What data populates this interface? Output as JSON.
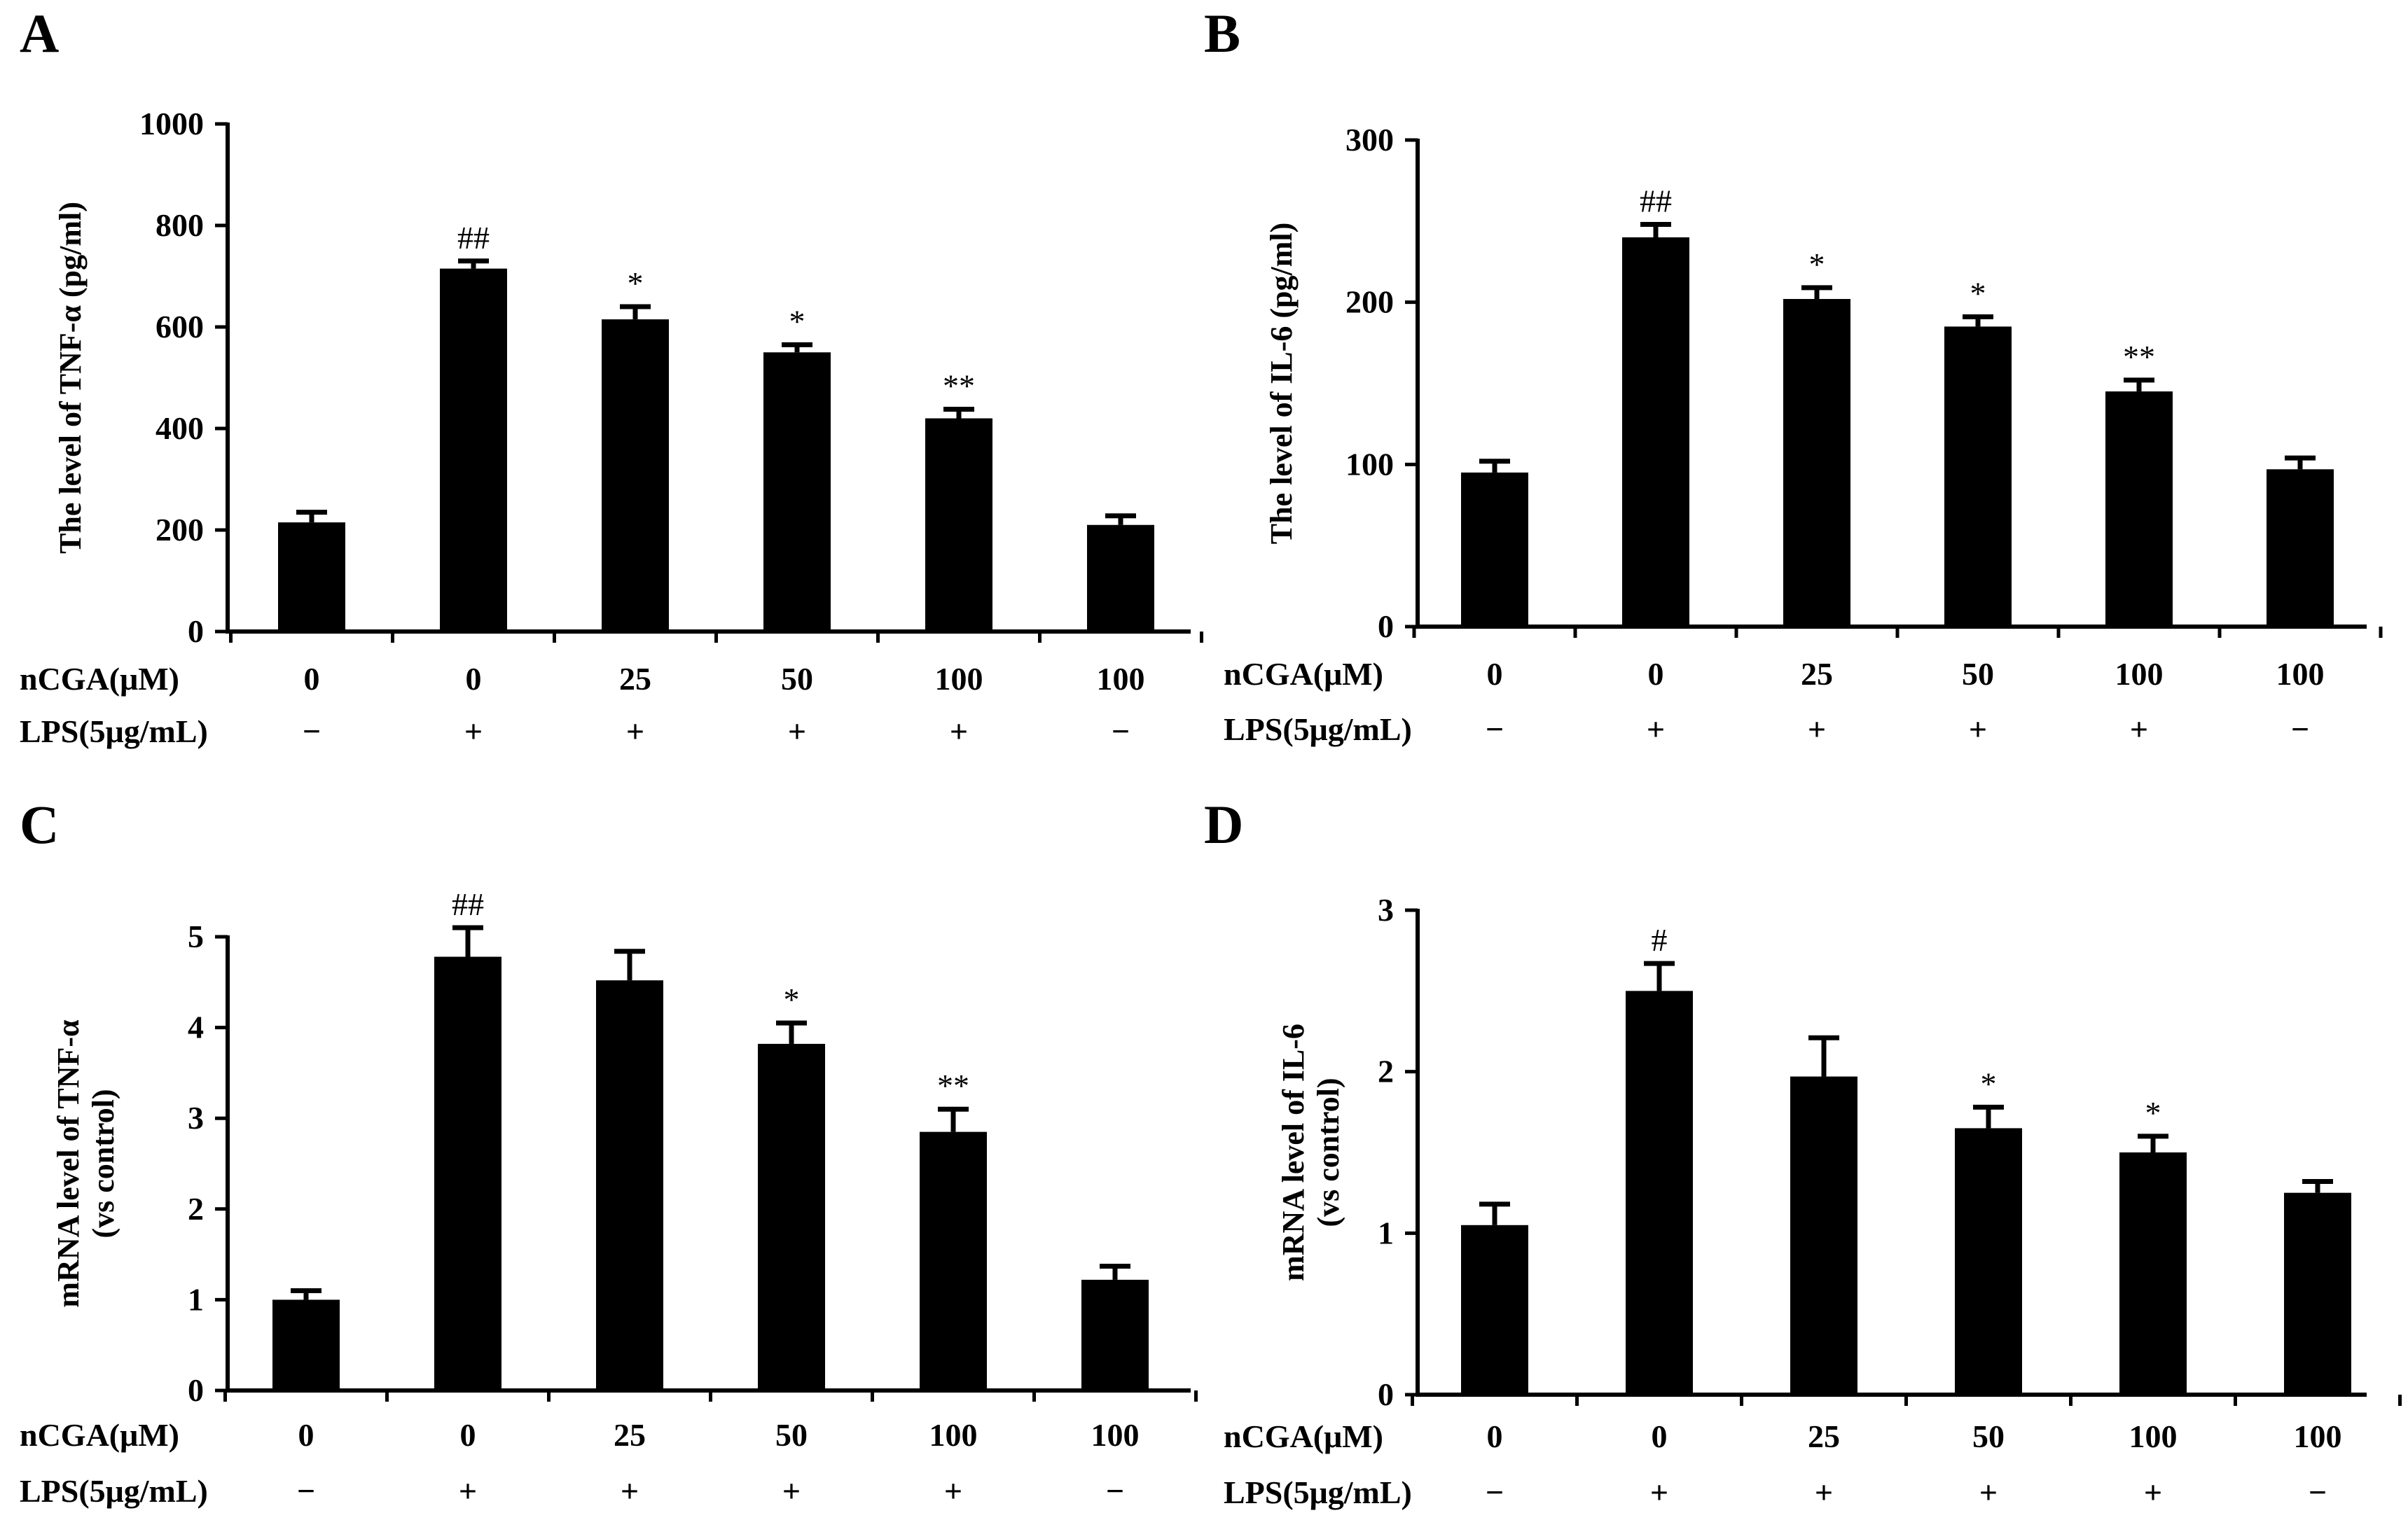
{
  "chart_data": [
    {
      "panel": "A",
      "type": "bar",
      "ylabel": "The level of TNF-α (pg/ml)",
      "ylim": [
        0,
        1000
      ],
      "yticks": [
        0,
        200,
        400,
        600,
        800,
        1000
      ],
      "values": [
        215,
        715,
        615,
        550,
        420,
        210
      ],
      "errors": [
        20,
        15,
        25,
        15,
        18,
        18
      ],
      "significance": [
        "",
        "##",
        "*",
        "*",
        "**",
        ""
      ],
      "ncga_label": "nCGA(μM)",
      "ncga": [
        "0",
        "0",
        "25",
        "50",
        "100",
        "100"
      ],
      "lps_label": "LPS(5μg/mL)",
      "lps": [
        "−",
        "+",
        "+",
        "+",
        "+",
        "−"
      ]
    },
    {
      "panel": "B",
      "type": "bar",
      "ylabel": "The level of IL-6 (pg/ml)",
      "ylim": [
        0,
        300
      ],
      "yticks": [
        0,
        100,
        200,
        300
      ],
      "values": [
        95,
        240,
        202,
        185,
        145,
        97
      ],
      "errors": [
        7,
        8,
        7,
        6,
        7,
        7
      ],
      "significance": [
        "",
        "##",
        "*",
        "*",
        "**",
        ""
      ],
      "ncga_label": "nCGA(μM)",
      "ncga": [
        "0",
        "0",
        "25",
        "50",
        "100",
        "100"
      ],
      "lps_label": "LPS(5μg/mL)",
      "lps": [
        "−",
        "+",
        "+",
        "+",
        "+",
        "−"
      ]
    },
    {
      "panel": "C",
      "type": "bar",
      "ylabel": "mRNA level of TNF-α",
      "ylabel2": "(vs control)",
      "ylim": [
        0,
        5
      ],
      "yticks": [
        0,
        1,
        2,
        3,
        4,
        5
      ],
      "values": [
        1.0,
        4.78,
        4.52,
        3.82,
        2.85,
        1.22
      ],
      "errors": [
        0.1,
        0.32,
        0.32,
        0.23,
        0.25,
        0.15
      ],
      "significance": [
        "",
        "##",
        "",
        "*",
        "**",
        ""
      ],
      "ncga_label": "nCGA(μM)",
      "ncga": [
        "0",
        "0",
        "25",
        "50",
        "100",
        "100"
      ],
      "lps_label": "LPS(5μg/mL)",
      "lps": [
        "−",
        "+",
        "+",
        "+",
        "+",
        "−"
      ]
    },
    {
      "panel": "D",
      "type": "bar",
      "ylabel": "mRNA level of IL-6",
      "ylabel2": "(vs control)",
      "ylim": [
        0,
        3
      ],
      "yticks": [
        0,
        1,
        2,
        3
      ],
      "values": [
        1.05,
        2.5,
        1.97,
        1.65,
        1.5,
        1.25
      ],
      "errors": [
        0.13,
        0.17,
        0.24,
        0.13,
        0.1,
        0.07
      ],
      "significance": [
        "",
        "#",
        "",
        "*",
        "*",
        ""
      ],
      "ncga_label": "nCGA(μM)",
      "ncga": [
        "0",
        "0",
        "25",
        "50",
        "100",
        "100"
      ],
      "lps_label": "LPS(5μg/mL)",
      "lps": [
        "−",
        "+",
        "+",
        "+",
        "+",
        "−"
      ]
    }
  ]
}
